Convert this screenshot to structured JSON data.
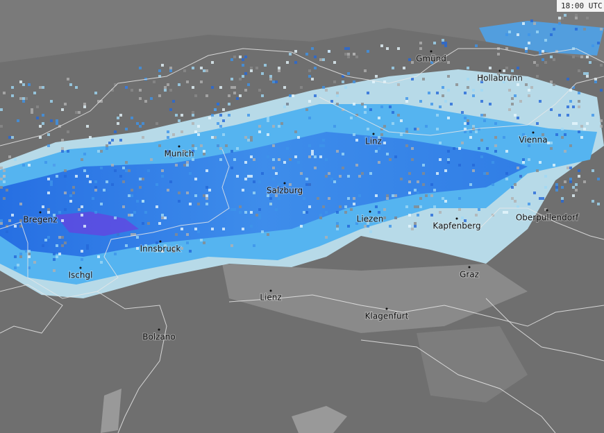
{
  "timestamp": "18:00 UTC",
  "cities": [
    "Gmünd",
    "Hollabrunn",
    "Linz",
    "Vienna",
    "Munich",
    "Salzburg",
    "Bregenz",
    "Liezen",
    "Kapfenberg",
    "Oberpullendorf",
    "Innsbruck",
    "Ischgl",
    "Graz",
    "Lienz",
    "Klagenfurt",
    "Bolzano"
  ]
}
